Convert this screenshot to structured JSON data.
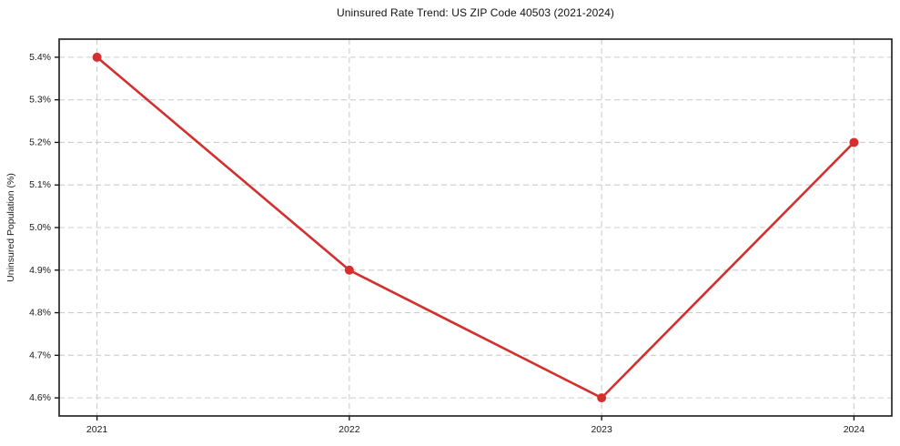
{
  "chart_data": {
    "type": "line",
    "title": "Uninsured Rate Trend: US ZIP Code 40503 (2021-2024)",
    "xlabel": "",
    "ylabel": "Uninsured Population (%)",
    "x": [
      2021,
      2022,
      2023,
      2024
    ],
    "values": [
      5.4,
      4.9,
      4.6,
      5.2
    ],
    "xticks": {
      "values": [
        2021,
        2022,
        2023,
        2024
      ],
      "labels": [
        "2021",
        "2022",
        "2023",
        "2024"
      ]
    },
    "yticks": {
      "values": [
        4.6,
        4.7,
        4.8,
        4.9,
        5.0,
        5.1,
        5.2,
        5.3,
        5.4
      ],
      "labels": [
        "4.6%",
        "4.7%",
        "4.8%",
        "4.9%",
        "5.0%",
        "5.1%",
        "5.2%",
        "5.3%",
        "5.4%"
      ]
    },
    "xlim": [
      2020.85,
      2024.15
    ],
    "ylim": [
      4.5575,
      5.4425
    ],
    "grid": true,
    "legend_position": "none",
    "colors": {
      "line": "#d32f2f",
      "marker": "#d32f2f",
      "grid": "#cccccc",
      "spine": "#1a1a1a",
      "text": "#1a1a1a",
      "background": "#ffffff"
    }
  }
}
